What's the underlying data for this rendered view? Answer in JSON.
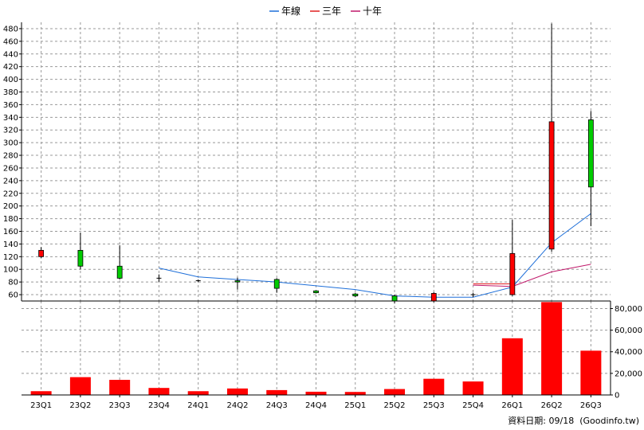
{
  "chart_data": {
    "type": "candlestick_with_volume",
    "legend": [
      {
        "name": "年線",
        "color": "#1e6fd9"
      },
      {
        "name": "三年",
        "color": "#e02020"
      },
      {
        "name": "十年",
        "color": "#c0186a"
      }
    ],
    "legend_placement": "top-center",
    "categories": [
      "23Q1",
      "23Q2",
      "23Q3",
      "23Q4",
      "24Q1",
      "24Q2",
      "24Q3",
      "24Q4",
      "25Q1",
      "25Q2",
      "25Q3",
      "25Q4",
      "26Q1",
      "26Q2",
      "26Q3"
    ],
    "price_axis": {
      "ylim": [
        50,
        490
      ],
      "ticks": [
        60,
        80,
        100,
        120,
        140,
        160,
        180,
        200,
        220,
        240,
        260,
        280,
        300,
        320,
        340,
        360,
        380,
        400,
        420,
        440,
        460,
        480
      ],
      "side": "left"
    },
    "volume_axis": {
      "ylim": [
        0,
        87000
      ],
      "ticks": [
        0,
        20000,
        40000,
        60000,
        80000
      ],
      "tick_labels": [
        "0",
        "20,000",
        "40,000",
        "60,000",
        "80,000"
      ],
      "side": "right"
    },
    "candles": [
      {
        "open": 120,
        "close": 130,
        "high": 135,
        "low": 118
      },
      {
        "open": 130,
        "close": 105,
        "high": 158,
        "low": 100
      },
      {
        "open": 105,
        "close": 86,
        "high": 138,
        "low": 84
      },
      {
        "open": 86,
        "close": 86,
        "high": 92,
        "low": 80
      },
      {
        "open": 82,
        "close": 82,
        "high": 84,
        "low": 80
      },
      {
        "open": 82,
        "close": 80,
        "high": 87,
        "low": 68
      },
      {
        "open": 84,
        "close": 70,
        "high": 86,
        "low": 63
      },
      {
        "open": 66,
        "close": 63,
        "high": 67,
        "low": 62
      },
      {
        "open": 61,
        "close": 58,
        "high": 63,
        "low": 56
      },
      {
        "open": 58,
        "close": 50,
        "high": 60,
        "low": 46
      },
      {
        "open": 50,
        "close": 62,
        "high": 64,
        "low": 48
      },
      {
        "open": 60,
        "close": 60,
        "high": 63,
        "low": 56
      },
      {
        "open": 60,
        "close": 125,
        "high": 178,
        "low": 58
      },
      {
        "open": 132,
        "close": 333,
        "high": 488,
        "low": 128
      },
      {
        "open": 336,
        "close": 230,
        "high": 350,
        "low": 168
      }
    ],
    "lines": [
      {
        "name": "年線",
        "color": "#1e6fd9",
        "x": [
          "23Q4",
          "24Q1",
          "24Q2",
          "24Q3",
          "24Q4",
          "25Q1",
          "25Q2",
          "25Q3",
          "25Q4",
          "26Q1",
          "26Q2",
          "26Q3"
        ],
        "y": [
          102,
          88,
          84,
          80,
          74,
          68,
          58,
          56,
          56,
          72,
          142,
          188
        ]
      },
      {
        "name": "三年",
        "color": "#e02020",
        "x": [
          "25Q4",
          "26Q1"
        ],
        "y": [
          77,
          77
        ]
      },
      {
        "name": "十年",
        "color": "#c0186a",
        "x": [
          "25Q4",
          "26Q1",
          "26Q2",
          "26Q3"
        ],
        "y": [
          75,
          73,
          96,
          108
        ]
      }
    ],
    "volume": [
      3500,
      16500,
      14000,
      6500,
      3500,
      6000,
      4500,
      3000,
      2800,
      5500,
      15000,
      12500,
      52500,
      86000,
      41000
    ],
    "volume_color": "#ff0000",
    "grid": true
  },
  "footer": {
    "date_text": "資料日期: 09/18  (Goodinfo.tw)"
  }
}
